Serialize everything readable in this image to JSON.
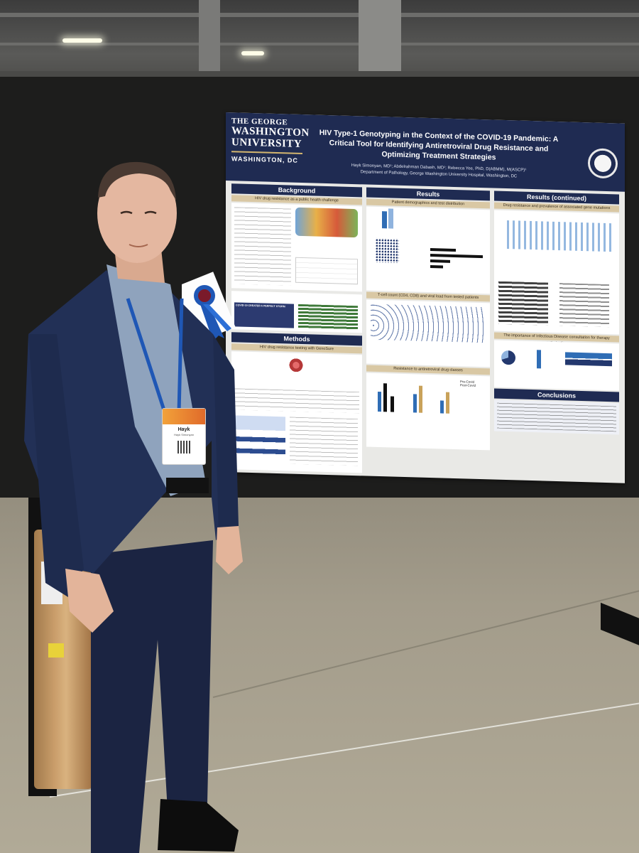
{
  "poster": {
    "university_line1": "THE GEORGE",
    "university_line2": "WASHINGTON",
    "university_line3": "UNIVERSITY",
    "university_location": "WASHINGTON, DC",
    "title": "HIV Type-1 Genotyping in the Context of the COVID-19 Pandemic: A Critical Tool for Identifying Antiretroviral Drug Resistance and Optimizing Treatment Strategies",
    "authors": "Hayk Simonyan, MD¹; Abdelrahman Dabash, MD¹; Rebecca Yee, PhD, D(ABMM), M(ASCP)¹",
    "affiliation": "Department of Pathology, George Washington University Hospital, Washington, DC",
    "sections": {
      "background": "Background",
      "methods": "Methods",
      "results": "Results",
      "results_continued": "Results (continued)",
      "conclusions": "Conclusions"
    },
    "subsections": {
      "bg_sub": "HIV drug resistance as a public health challenge",
      "methods_sub": "HIV drug resistance testing with GenoSure",
      "results_sub1": "Patient demographics and test distribution",
      "results_sub2": "T-cell count (CD4, CD8) and viral load from tested patients",
      "results_sub3": "Resistance to antiretroviral drug classes",
      "rc_sub1": "Drug resistance and prevalence of associated gene mutations",
      "rc_sub2": "The importance of Infectious Disease consultation for therapy optimization"
    },
    "legend_pre": "Pre-Covid",
    "legend_post": "Post-Covid",
    "callout": "COVID-19 CREATED A PERFECT STORM"
  },
  "badge": {
    "name": "Hayk",
    "subname": "Hayk Simonyan"
  },
  "colors": {
    "poster_navy": "#1f2b52",
    "poster_tan": "#d9c8a4",
    "suit": "#1f2a4a",
    "badge_orange": "#e98a30"
  }
}
